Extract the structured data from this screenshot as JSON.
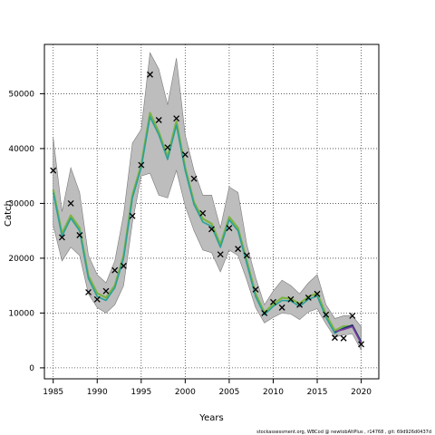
{
  "chart_data": {
    "type": "line",
    "xlabel": "Years",
    "ylabel": "Catch",
    "xlim": [
      1984,
      2022
    ],
    "ylim": [
      -2000,
      59000
    ],
    "x_ticks": [
      1985,
      1990,
      1995,
      2000,
      2005,
      2010,
      2015,
      2020
    ],
    "y_ticks": [
      0,
      10000,
      20000,
      30000,
      40000,
      50000
    ],
    "y_tick_labels": [
      "0",
      "10000",
      "20000",
      "30000",
      "40000",
      "50000"
    ],
    "grid": true,
    "colors": {
      "band": "#bdbdbd",
      "band_edge": "#7a7a7a",
      "fit_green": "#7cb342",
      "fit_teal": "#2aa198",
      "fit_navy": "#1f2a6b",
      "fit_purple": "#7b3fa0",
      "observed": "#000000"
    },
    "years": [
      1985,
      1986,
      1987,
      1988,
      1989,
      1990,
      1991,
      1992,
      1993,
      1994,
      1995,
      1996,
      1997,
      1998,
      1999,
      2000,
      2001,
      2002,
      2003,
      2004,
      2005,
      2006,
      2007,
      2008,
      2009,
      2010,
      2011,
      2012,
      2013,
      2014,
      2015,
      2016,
      2017,
      2018,
      2019,
      2020
    ],
    "band_upper": [
      42000,
      28500,
      36500,
      32000,
      20500,
      17000,
      15500,
      19500,
      28000,
      41000,
      43500,
      57500,
      54500,
      48000,
      56500,
      42500,
      36000,
      31500,
      31500,
      25500,
      33000,
      32000,
      22500,
      16500,
      11500,
      14000,
      16000,
      15000,
      13500,
      15500,
      17000,
      11500,
      9000,
      9500,
      9500,
      7500
    ],
    "band_lower": [
      26000,
      19500,
      22000,
      20500,
      13500,
      11000,
      10000,
      11500,
      15000,
      26500,
      35000,
      35500,
      31500,
      31000,
      36000,
      29500,
      25000,
      21500,
      21000,
      17500,
      21500,
      20500,
      16000,
      11000,
      8200,
      9200,
      10000,
      9800,
      8800,
      10200,
      10800,
      8000,
      5600,
      6000,
      6200,
      3200
    ],
    "series": [
      {
        "name": "",
        "color_key": "fit_green",
        "values": [
          32500,
          24500,
          27800,
          25500,
          16800,
          13600,
          12800,
          15000,
          20500,
          31500,
          37000,
          46500,
          43000,
          38500,
          45000,
          36500,
          30200,
          27200,
          26300,
          22500,
          27500,
          25500,
          19500,
          13500,
          10100,
          11600,
          12800,
          12600,
          11700,
          13000,
          13600,
          9700,
          6800,
          7600,
          7600,
          4600
        ]
      },
      {
        "name": "",
        "color_key": "fit_teal",
        "values": [
          32000,
          24000,
          27300,
          25000,
          16300,
          13000,
          12300,
          14600,
          20000,
          31000,
          36500,
          45800,
          42500,
          38000,
          44300,
          36000,
          29800,
          26600,
          25800,
          22000,
          27000,
          25000,
          19000,
          13000,
          9700,
          11200,
          12300,
          12200,
          11200,
          12500,
          13100,
          9200,
          6300,
          7300,
          7700,
          4800
        ]
      },
      {
        "name": "",
        "color_key": "fit_navy",
        "values": [
          null,
          null,
          null,
          null,
          null,
          null,
          null,
          null,
          null,
          null,
          null,
          null,
          null,
          null,
          null,
          null,
          null,
          null,
          null,
          null,
          null,
          null,
          null,
          null,
          null,
          null,
          null,
          null,
          null,
          null,
          null,
          null,
          6500,
          7200,
          7800,
          4700
        ]
      },
      {
        "name": "",
        "color_key": "fit_purple",
        "values": [
          null,
          null,
          null,
          null,
          null,
          null,
          null,
          null,
          null,
          null,
          null,
          null,
          null,
          null,
          null,
          null,
          null,
          null,
          null,
          null,
          null,
          null,
          null,
          null,
          null,
          null,
          null,
          null,
          null,
          null,
          null,
          null,
          6600,
          7000,
          7500,
          4400
        ]
      }
    ],
    "observed": {
      "x": [
        1985,
        1986,
        1987,
        1988,
        1989,
        1990,
        1991,
        1992,
        1993,
        1994,
        1995,
        1996,
        1997,
        1998,
        1999,
        2000,
        2001,
        2002,
        2003,
        2004,
        2005,
        2006,
        2007,
        2008,
        2009,
        2010,
        2011,
        2012,
        2013,
        2014,
        2015,
        2016,
        2017,
        2018,
        2019,
        2020
      ],
      "y": [
        36000,
        23800,
        30000,
        24200,
        13800,
        12500,
        14000,
        17800,
        18600,
        27700,
        37000,
        53500,
        45200,
        40200,
        45500,
        38900,
        34500,
        28200,
        25300,
        20700,
        25500,
        21700,
        20500,
        14300,
        10000,
        12000,
        11000,
        12500,
        11500,
        12800,
        13500,
        9700,
        5500,
        5400,
        9500,
        4300
      ]
    },
    "footer": "stockassessment.org,  WBCod  @  newtobAltPlus ,  r14768 ,  git:  69d926d0437d"
  }
}
